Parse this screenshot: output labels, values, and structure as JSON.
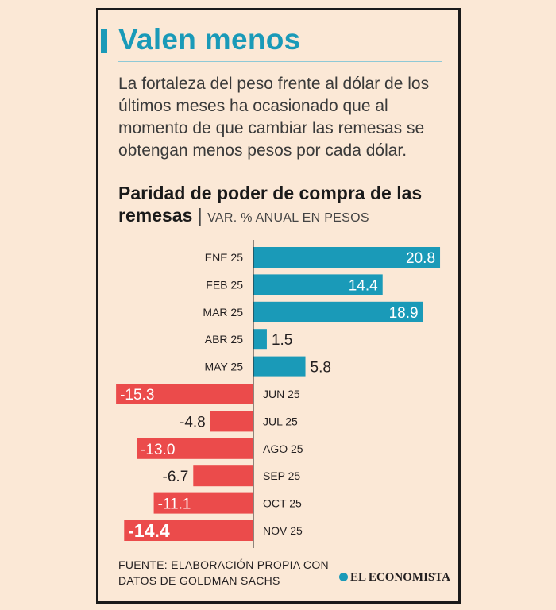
{
  "header": {
    "title": "Valen menos",
    "description": "La fortaleza del peso frente al dólar de los últimos meses ha ocasionado que al momento de que cambiar las remesas se obtengan menos pesos por cada dólar."
  },
  "chart_data": {
    "type": "bar",
    "orientation": "horizontal",
    "title": "Paridad de poder de compra de las remesas",
    "subtitle": "VAR. % ANUAL EN PESOS",
    "categories": [
      "ENE 25",
      "FEB 25",
      "MAR 25",
      "ABR 25",
      "MAY 25",
      "JUN 25",
      "JUL 25",
      "AGO 25",
      "SEP 25",
      "OCT 25",
      "NOV 25"
    ],
    "values": [
      20.8,
      14.4,
      18.9,
      1.5,
      5.8,
      -15.3,
      -4.8,
      -13.0,
      -6.7,
      -11.1,
      -14.4
    ],
    "labels": [
      "20.8",
      "14.4",
      "18.9",
      "1.5",
      "5.8",
      "-15.3",
      "-4.8",
      "-13.0",
      "-6.7",
      "-11.1",
      "-14.4"
    ],
    "positive_color": "#1a9ab8",
    "negative_color": "#eb4b4b",
    "xlabel": "",
    "ylabel": ""
  },
  "footer": {
    "source_line1": "FUENTE: ELABORACIÓN PROPIA CON",
    "source_line2": "DATOS DE GOLDMAN SACHS",
    "brand": "EL ECONOMISTA"
  },
  "colors": {
    "accent": "#1a9ab8",
    "negative": "#eb4b4b",
    "background": "#fbe8d6"
  }
}
